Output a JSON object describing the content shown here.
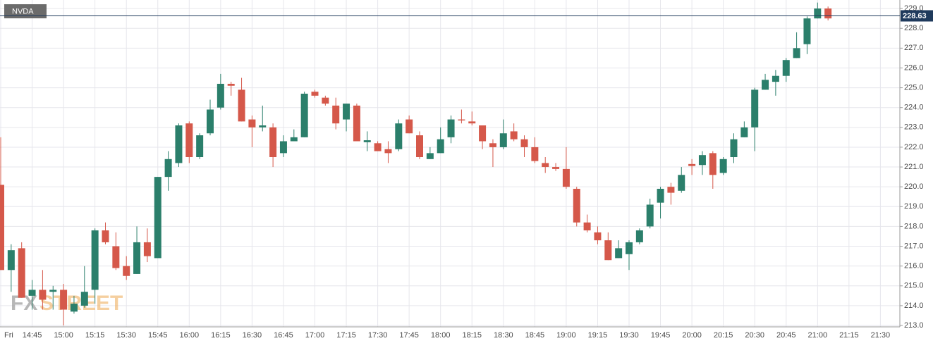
{
  "chart_data": {
    "type": "candlestick",
    "symbol": "NVDA",
    "watermark": [
      "FX",
      "STREET"
    ],
    "up_color": "#2b7f6b",
    "down_color": "#d5584a",
    "price_line_color": "#1f3a5c",
    "grid": true,
    "last_price": 228.63,
    "categories": [
      "Fri",
      null,
      null,
      "14:45",
      null,
      null,
      "15:00",
      null,
      null,
      "15:15",
      null,
      null,
      "15:30",
      null,
      null,
      "15:45",
      null,
      null,
      "16:00",
      null,
      null,
      "16:15",
      null,
      null,
      "16:30",
      null,
      null,
      "16:45",
      null,
      null,
      "17:00",
      null,
      null,
      "17:15",
      null,
      null,
      "17:30",
      null,
      null,
      "17:45",
      null,
      null,
      "18:00",
      null,
      null,
      "18:15",
      null,
      null,
      "18:30",
      null,
      null,
      "18:45",
      null,
      null,
      "19:00",
      null,
      null,
      "19:15",
      null,
      null,
      "19:30",
      null,
      null,
      "19:45",
      null,
      null,
      "20:00",
      null,
      null,
      "20:15",
      null,
      null,
      "20:30",
      null,
      null,
      "20:45",
      null,
      null,
      "21:00",
      null,
      null,
      "21:15",
      null,
      null,
      "21:30"
    ],
    "open": [
      220.1,
      215.8,
      216.9,
      214.5,
      214.8,
      214.7,
      214.8,
      213.7,
      214.0,
      214.8,
      217.8,
      217.0,
      216.0,
      215.6,
      217.2,
      216.4,
      220.5,
      221.2,
      223.2,
      221.5,
      222.7,
      224.0,
      225.2,
      224.9,
      223.4,
      223.0,
      223.0,
      221.7,
      222.3,
      222.5,
      224.8,
      224.5,
      224.1,
      223.4,
      224.1,
      222.25,
      222.2,
      221.9,
      221.9,
      223.4,
      222.6,
      221.4,
      221.7,
      222.5,
      223.4,
      223.3,
      223.1,
      222.2,
      222.0,
      222.8,
      222.4,
      222.0,
      221.2,
      221.0,
      220.9,
      219.9,
      218.2,
      217.7,
      217.3,
      216.4,
      216.6,
      217.2,
      218.0,
      219.2,
      220.0,
      219.8,
      221.15,
      221.1,
      221.7,
      220.7,
      221.5,
      222.5,
      223.0,
      224.9,
      225.3,
      225.6,
      226.5,
      227.2,
      228.5,
      229.0,
      null,
      null,
      null,
      null,
      null
    ],
    "high": [
      222.5,
      217.1,
      217.2,
      215.3,
      215.8,
      215.0,
      215.1,
      214.5,
      216.0,
      217.9,
      218.2,
      217.7,
      216.5,
      218.0,
      217.9,
      220.5,
      221.8,
      223.2,
      223.3,
      222.7,
      224.4,
      225.7,
      225.3,
      225.5,
      223.6,
      224.1,
      223.2,
      222.6,
      222.9,
      224.8,
      224.9,
      224.6,
      224.5,
      224.2,
      224.2,
      222.8,
      222.3,
      222.3,
      223.4,
      223.6,
      222.8,
      222.0,
      223.0,
      223.6,
      223.9,
      223.8,
      223.1,
      222.4,
      223.4,
      223.2,
      222.6,
      222.5,
      221.5,
      221.2,
      222.0,
      220.0,
      218.6,
      218.0,
      217.7,
      217.3,
      217.3,
      217.9,
      219.4,
      220.0,
      220.2,
      221.0,
      221.4,
      221.8,
      221.8,
      221.5,
      222.7,
      223.3,
      225.0,
      225.7,
      225.9,
      226.5,
      227.8,
      228.6,
      229.3,
      229.1,
      null,
      null,
      null,
      null,
      null
    ],
    "low": [
      215.8,
      214.7,
      214.4,
      213.8,
      213.8,
      213.8,
      213.0,
      213.6,
      213.9,
      214.1,
      217.1,
      215.8,
      215.3,
      215.6,
      216.2,
      216.4,
      219.8,
      221.0,
      221.2,
      221.4,
      222.6,
      223.9,
      224.6,
      223.3,
      222.0,
      222.8,
      221.0,
      221.5,
      222.3,
      222.5,
      224.5,
      224.1,
      222.9,
      222.8,
      222.3,
      221.8,
      221.8,
      221.2,
      221.8,
      222.7,
      221.4,
      221.4,
      221.7,
      222.2,
      223.2,
      223.1,
      221.9,
      221.0,
      221.9,
      222.3,
      221.5,
      221.2,
      220.7,
      220.8,
      219.9,
      218.0,
      217.7,
      217.1,
      216.3,
      216.4,
      215.8,
      217.1,
      217.9,
      218.4,
      219.1,
      219.7,
      220.6,
      220.6,
      219.9,
      220.6,
      221.2,
      222.5,
      221.8,
      224.9,
      224.6,
      225.3,
      226.5,
      226.7,
      228.5,
      228.4,
      null,
      null,
      null,
      null,
      null
    ],
    "close": [
      215.8,
      216.8,
      214.4,
      214.8,
      214.3,
      214.8,
      213.8,
      214.1,
      214.7,
      217.8,
      217.2,
      215.9,
      215.5,
      217.2,
      216.5,
      220.5,
      221.4,
      223.1,
      221.5,
      222.6,
      223.9,
      225.2,
      225.1,
      223.3,
      223.0,
      223.1,
      221.5,
      222.3,
      222.5,
      224.7,
      224.6,
      224.2,
      223.2,
      224.2,
      222.3,
      222.35,
      221.8,
      221.7,
      223.2,
      222.7,
      221.5,
      221.7,
      222.4,
      223.4,
      223.35,
      223.2,
      222.3,
      222.0,
      222.7,
      222.4,
      222.0,
      221.3,
      221.0,
      220.9,
      220.0,
      218.2,
      217.8,
      217.3,
      216.3,
      216.9,
      217.2,
      217.8,
      219.1,
      219.9,
      219.7,
      220.6,
      221.05,
      221.6,
      220.6,
      221.4,
      222.4,
      223.0,
      224.9,
      225.4,
      225.6,
      226.4,
      227.0,
      228.5,
      229.0,
      228.5,
      null,
      null,
      null,
      null,
      null
    ],
    "ylim": [
      212.93,
      229.43
    ],
    "yticks": [
      {
        "value": 213,
        "label": "213.0"
      },
      {
        "value": 214,
        "label": "214.0"
      },
      {
        "value": 215,
        "label": "215.0"
      },
      {
        "value": 216,
        "label": "216.0"
      },
      {
        "value": 217,
        "label": "217.0"
      },
      {
        "value": 218,
        "label": "218.0"
      },
      {
        "value": 219,
        "label": "219.0"
      },
      {
        "value": 220,
        "label": "220.0"
      },
      {
        "value": 221,
        "label": "221.0"
      },
      {
        "value": 222,
        "label": "222.0"
      },
      {
        "value": 223,
        "label": "223.0"
      },
      {
        "value": 224,
        "label": "224.0"
      },
      {
        "value": 225,
        "label": "225.0"
      },
      {
        "value": 226,
        "label": "226.0"
      },
      {
        "value": 227,
        "label": "227.0"
      },
      {
        "value": 228,
        "label": "228.0"
      },
      {
        "value": 229,
        "label": "229.0"
      }
    ]
  }
}
